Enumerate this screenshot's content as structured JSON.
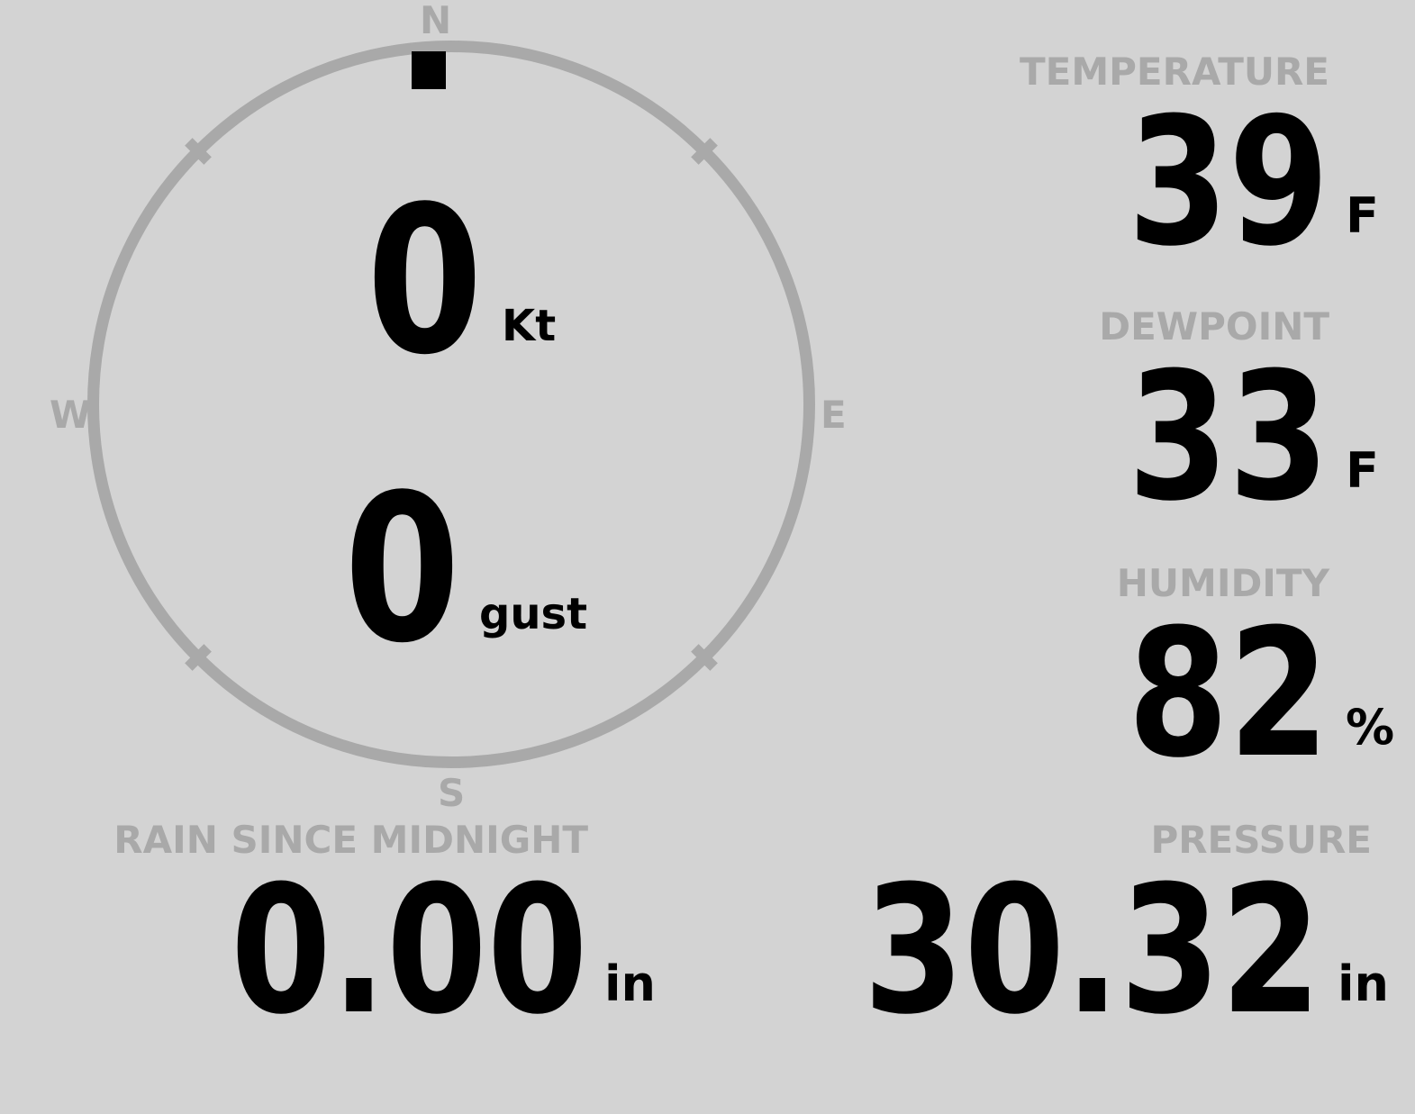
{
  "colors": {
    "background": "#d3d3d3",
    "label_gray": "#a9a9a9",
    "ring_gray": "#a9a9a9",
    "value_black": "#000000",
    "marker_black": "#000000"
  },
  "compass": {
    "directions": {
      "north": "N",
      "east": "E",
      "south": "S",
      "west": "W"
    },
    "marker_direction": "N",
    "wind": {
      "speed": {
        "value": "0",
        "unit": "Kt"
      },
      "gust": {
        "value": "0",
        "unit": "gust"
      }
    }
  },
  "stats": {
    "temperature": {
      "label": "TEMPERATURE",
      "value": "39",
      "unit": "F"
    },
    "dewpoint": {
      "label": "DEWPOINT",
      "value": "33",
      "unit": "F"
    },
    "humidity": {
      "label": "HUMIDITY",
      "value": "82",
      "unit": "%"
    },
    "rain": {
      "label": "RAIN SINCE MIDNIGHT",
      "value": "0.00",
      "unit": "in"
    },
    "pressure": {
      "label": "PRESSURE",
      "value": "30.32",
      "unit": "in"
    }
  }
}
